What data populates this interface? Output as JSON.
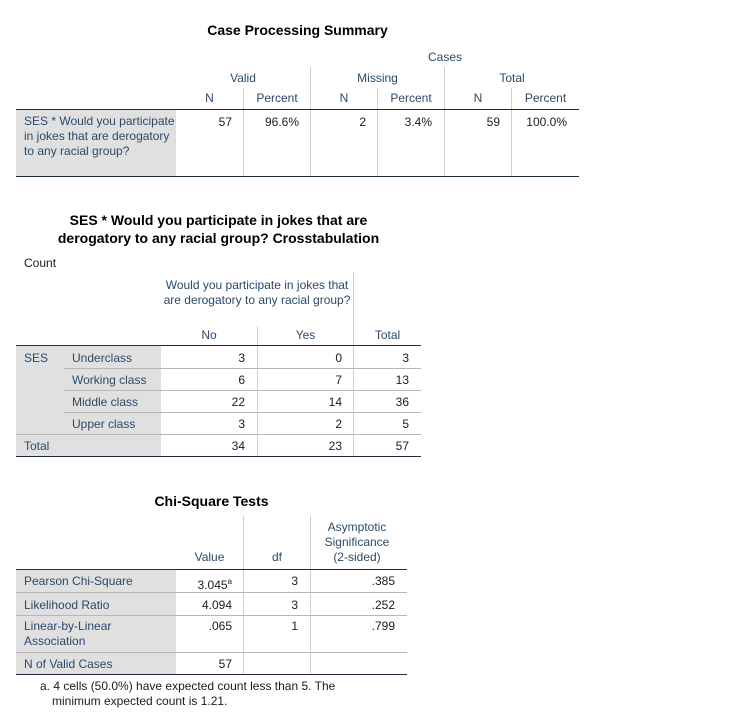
{
  "case_summary": {
    "title": "Case Processing Summary",
    "cases_label": "Cases",
    "groups": [
      "Valid",
      "Missing",
      "Total"
    ],
    "sub": [
      "N",
      "Percent",
      "N",
      "Percent",
      "N",
      "Percent"
    ],
    "row_label": "SES * Would you participate in jokes that are derogatory to any racial group?",
    "values": [
      "57",
      "96.6%",
      "2",
      "3.4%",
      "59",
      "100.0%"
    ]
  },
  "crosstab": {
    "title_line1": "SES * Would you participate in jokes that are",
    "title_line2": "derogatory to any racial group? Crosstabulation",
    "count_label": "Count",
    "col_group": "Would you participate in jokes that are derogatory to any racial group?",
    "cols": [
      "No",
      "Yes",
      "Total"
    ],
    "row_group": "SES",
    "rows": [
      {
        "label": "Underclass",
        "values": [
          "3",
          "0",
          "3"
        ]
      },
      {
        "label": "Working class",
        "values": [
          "6",
          "7",
          "13"
        ]
      },
      {
        "label": "Middle class",
        "values": [
          "22",
          "14",
          "36"
        ]
      },
      {
        "label": "Upper class",
        "values": [
          "3",
          "2",
          "5"
        ]
      }
    ],
    "total_label": "Total",
    "total_values": [
      "34",
      "23",
      "57"
    ]
  },
  "chi": {
    "title": "Chi-Square Tests",
    "cols": [
      "Value",
      "df",
      "Asymptotic Significance (2-sided)"
    ],
    "rows": [
      {
        "label": "Pearson Chi-Square",
        "value": "3.045",
        "sup": "a",
        "df": "3",
        "sig": ".385"
      },
      {
        "label": "Likelihood Ratio",
        "value": "4.094",
        "sup": "",
        "df": "3",
        "sig": ".252"
      },
      {
        "label": "Linear-by-Linear Association",
        "value": ".065",
        "sup": "",
        "df": "1",
        "sig": ".799"
      },
      {
        "label": "N of Valid Cases",
        "value": "57",
        "sup": "",
        "df": "",
        "sig": ""
      }
    ],
    "footnote": "a. 4 cells (50.0%) have expected count less than 5. The minimum expected count is 1.21."
  }
}
